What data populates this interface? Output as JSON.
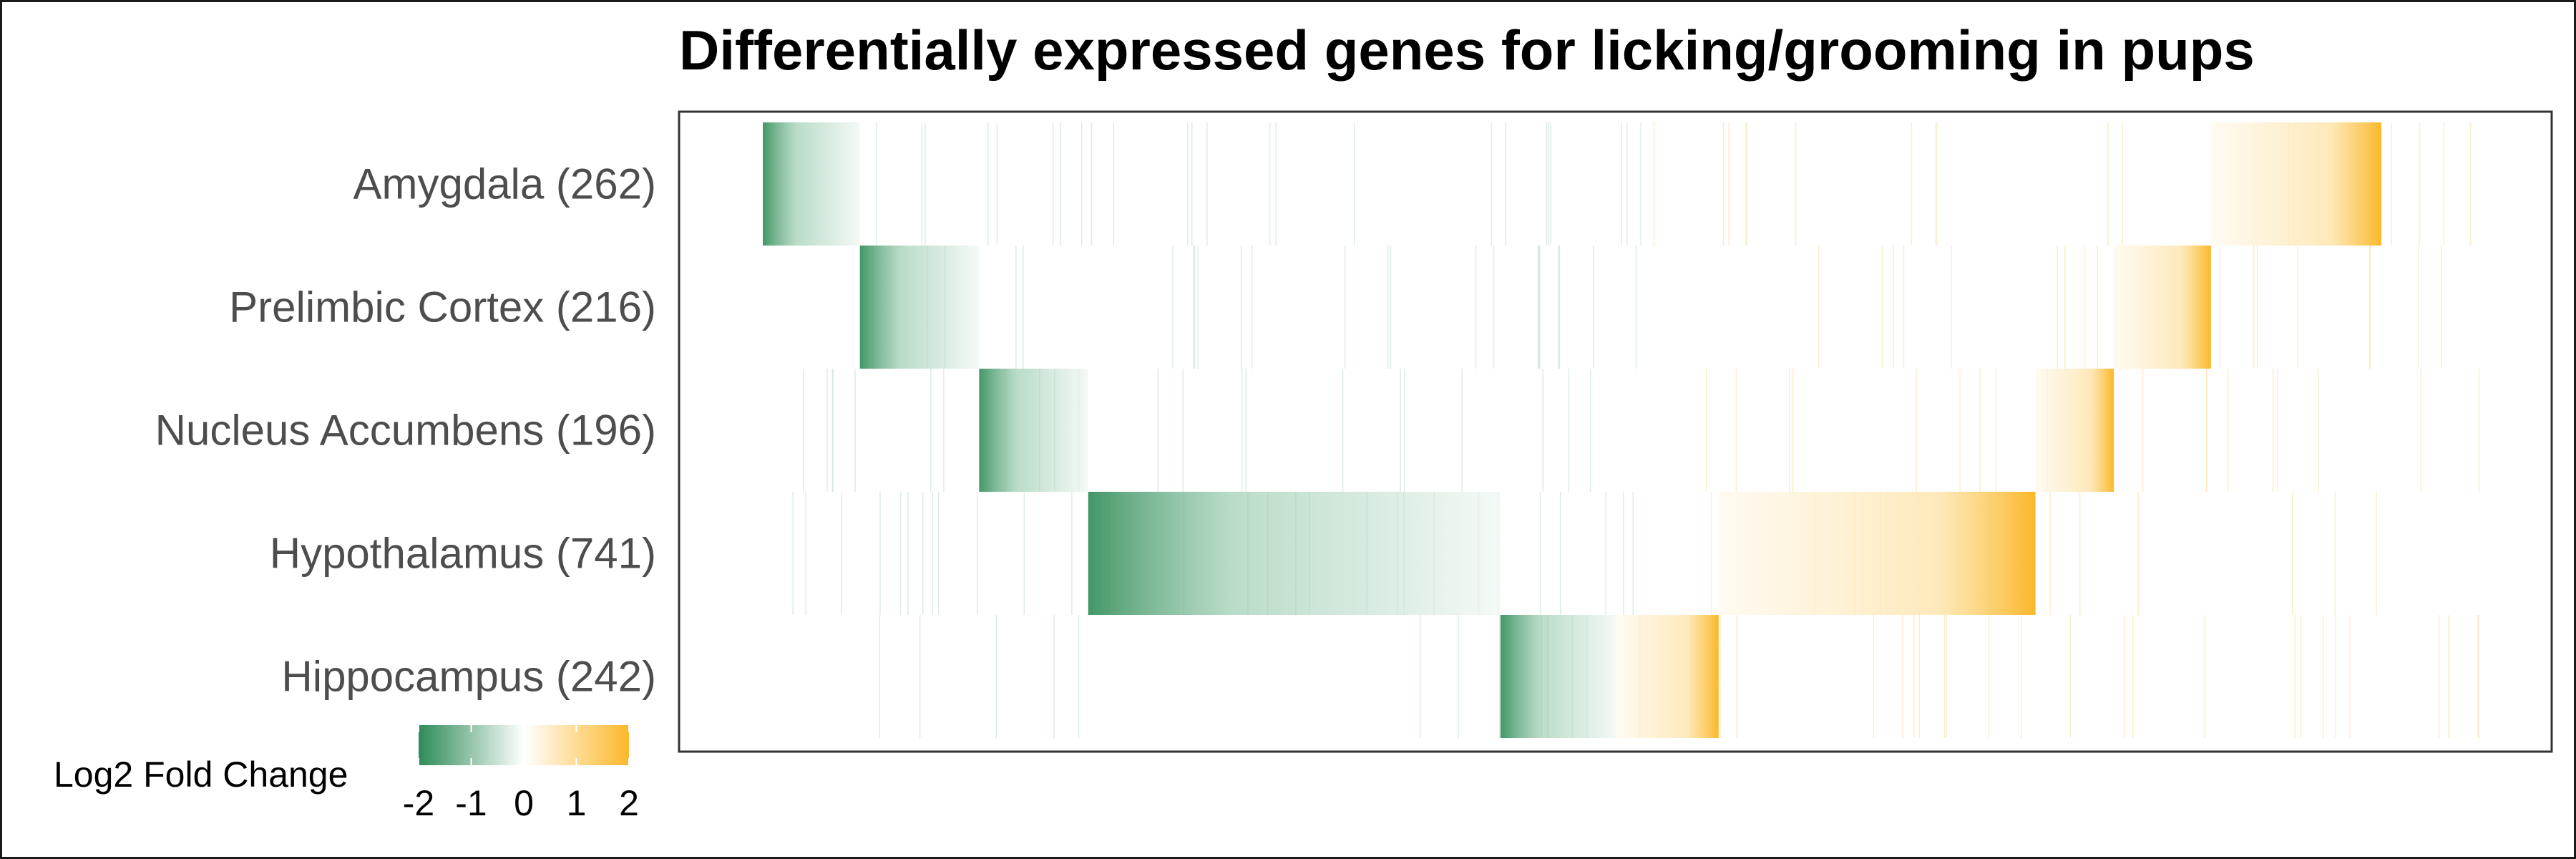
{
  "chart_data": {
    "type": "heatmap",
    "title": "Differentially expressed genes for licking/grooming in pups",
    "rows": [
      {
        "label": "Amygdala (262)",
        "down_segment": [
          0.0,
          0.057
        ],
        "up_segment": [
          0.85,
          0.95
        ]
      },
      {
        "label": "Prelimbic Cortex (216)",
        "down_segment": [
          0.057,
          0.127
        ],
        "up_segment": [
          0.793,
          0.85
        ]
      },
      {
        "label": "Nucleus Accumbens (196)",
        "down_segment": [
          0.127,
          0.191
        ],
        "up_segment": [
          0.747,
          0.793
        ]
      },
      {
        "label": "Hypothalamus (741)",
        "down_segment": [
          0.191,
          0.433
        ],
        "up_segment": [
          0.561,
          0.747
        ]
      },
      {
        "label": "Hippocampus (242)",
        "down_segment": [
          0.433,
          0.501
        ],
        "up_segment": [
          0.501,
          0.561
        ]
      }
    ],
    "legend": {
      "title": "Log2 Fold Change",
      "min": -2,
      "max": 2,
      "ticks": [
        "-2",
        "-1",
        "0",
        "1",
        "2"
      ],
      "low_color": "#2e8b57",
      "mid_color": "#ffffff",
      "high_color": "#fbb829"
    }
  }
}
